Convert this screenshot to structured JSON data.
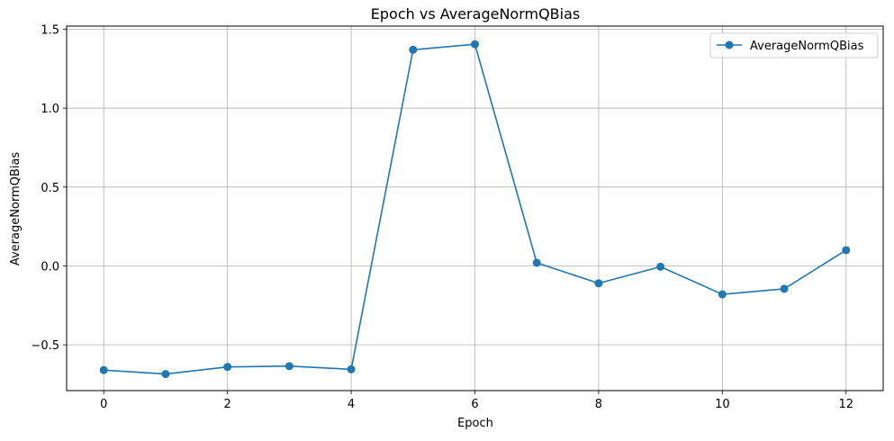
{
  "chart_data": {
    "type": "line",
    "title": "Epoch vs AverageNormQBias",
    "xlabel": "Epoch",
    "ylabel": "AverageNormQBias",
    "xlim": [
      -0.6,
      12.6
    ],
    "ylim": [
      -0.79,
      1.52
    ],
    "x_ticks": [
      0,
      2,
      4,
      6,
      8,
      10,
      12
    ],
    "y_ticks": [
      -0.5,
      0.0,
      0.5,
      1.0,
      1.5
    ],
    "y_tick_labels": [
      "−0.5",
      "0.0",
      "0.5",
      "1.0",
      "1.5"
    ],
    "grid": true,
    "legend_position": "top-right",
    "series": [
      {
        "name": "AverageNormQBias",
        "color": "#1f77b4",
        "marker": "circle",
        "x": [
          0,
          1,
          2,
          3,
          4,
          5,
          6,
          7,
          8,
          9,
          10,
          11,
          12
        ],
        "y": [
          -0.66,
          -0.685,
          -0.64,
          -0.635,
          -0.655,
          1.37,
          1.405,
          0.02,
          -0.11,
          -0.005,
          -0.18,
          -0.145,
          0.1
        ]
      }
    ]
  }
}
